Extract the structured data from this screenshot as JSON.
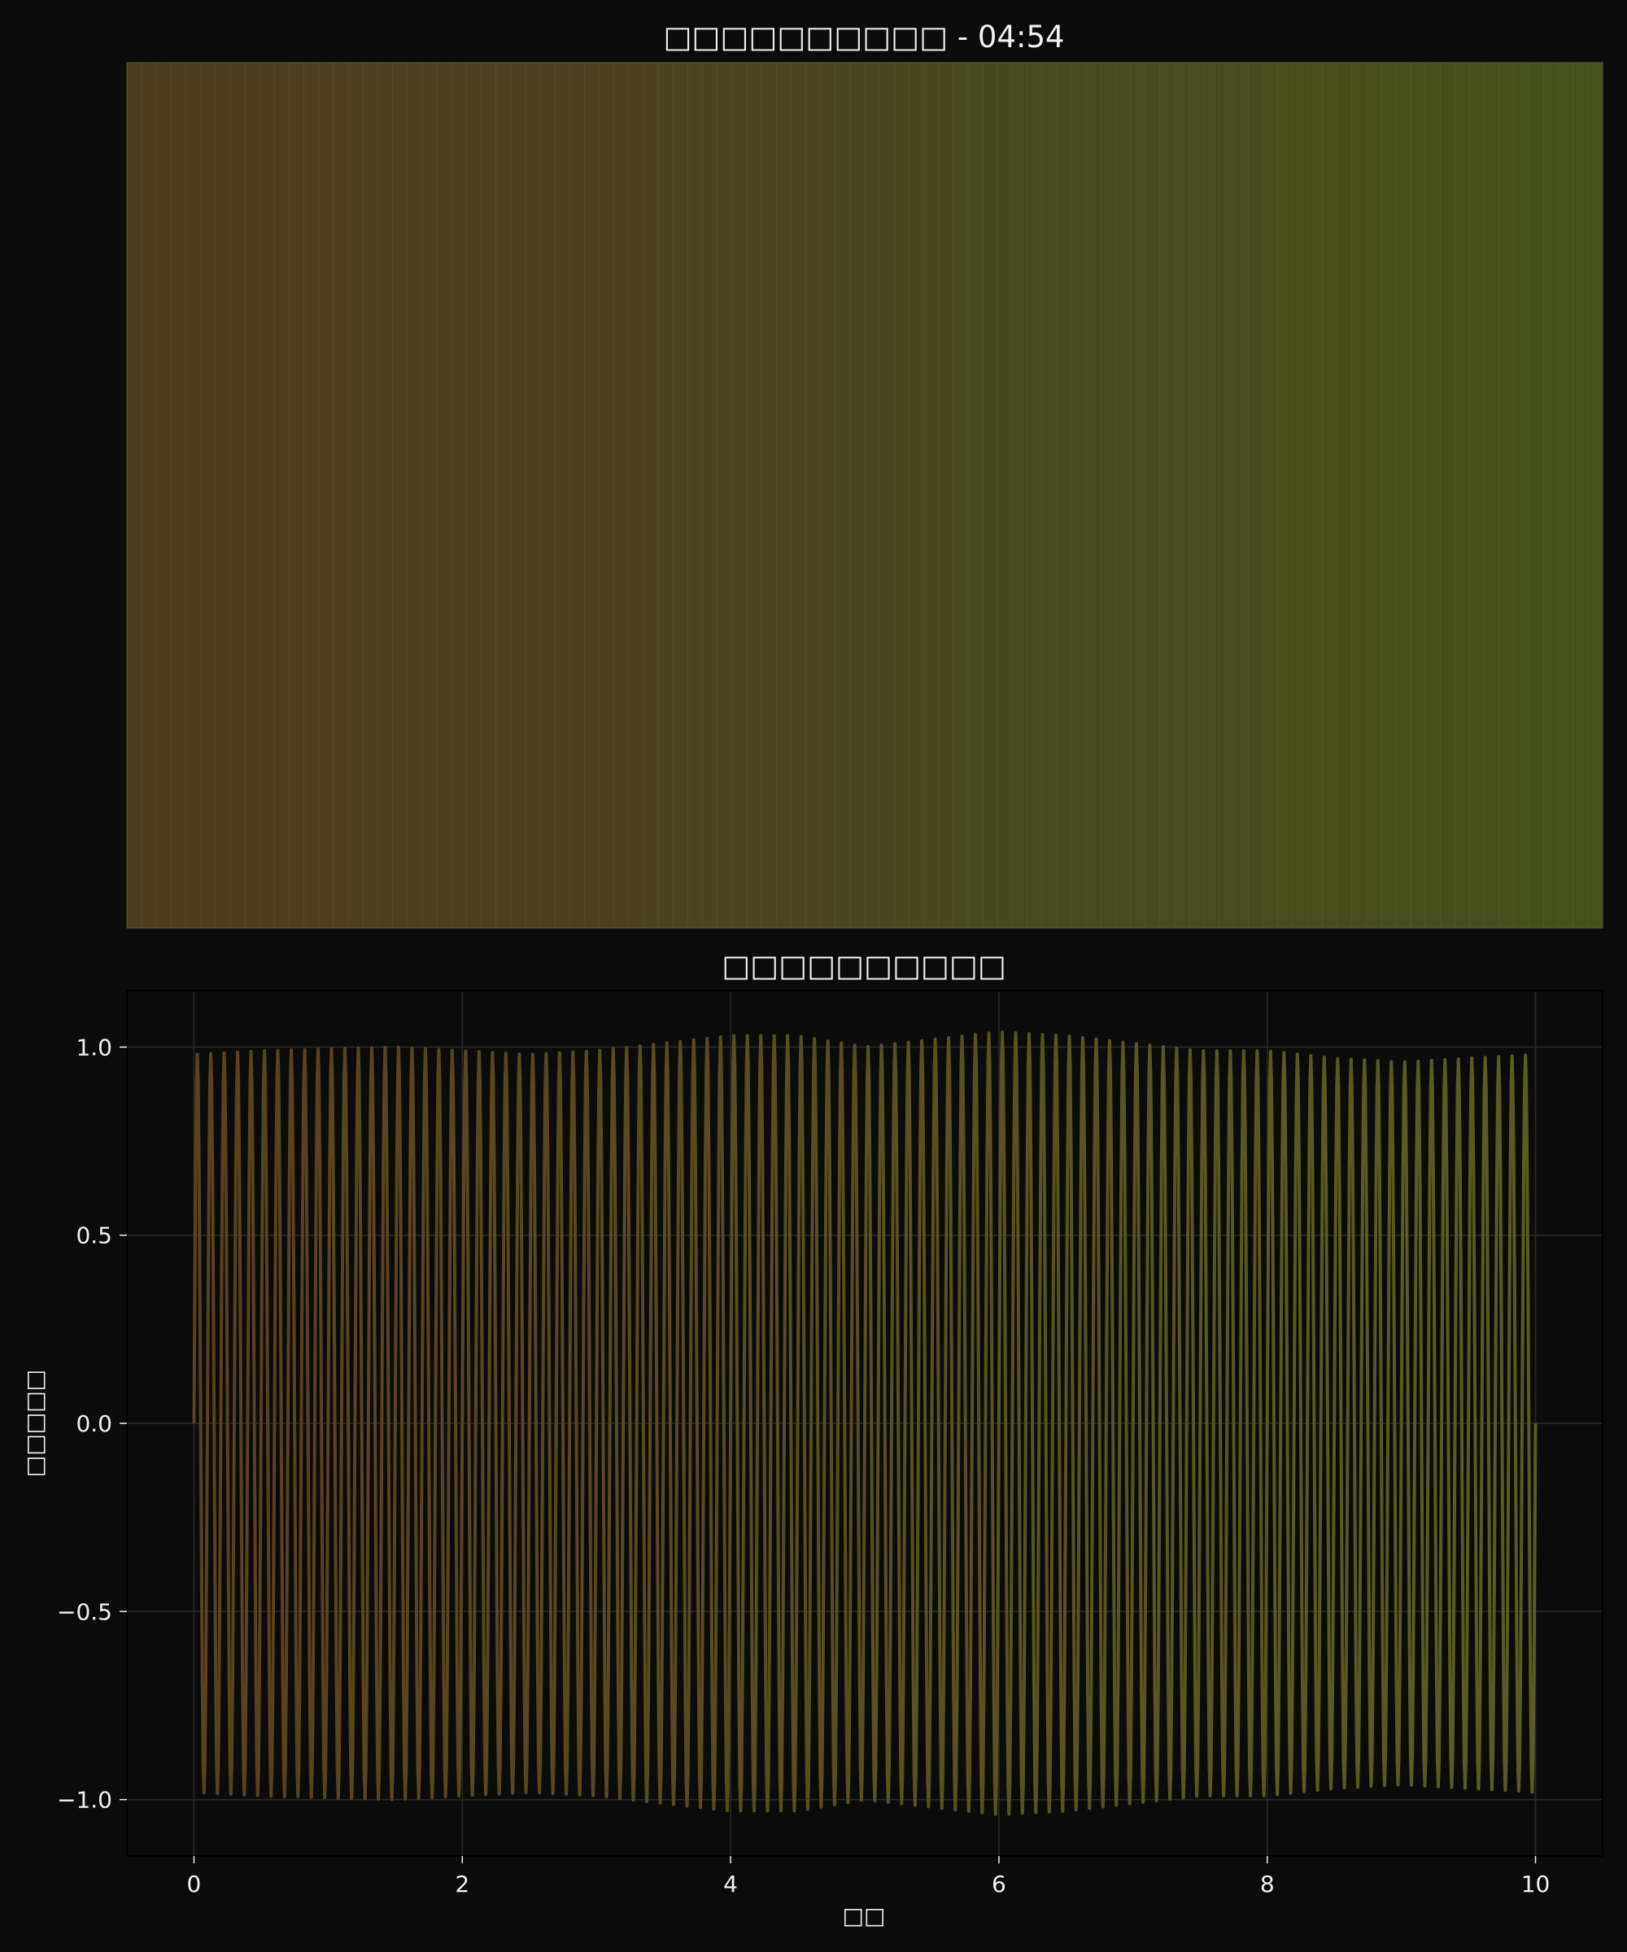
{
  "figure": {
    "background": "#0b0b0b",
    "text_color": "#f2f2f2"
  },
  "chart_data": [
    {
      "type": "heatmap",
      "title": "□□□□□□□□□□ - 04:54",
      "color_start": "#4e3a1c",
      "color_end": "#46521c",
      "stripe_count": 200,
      "axes_visible": false
    },
    {
      "type": "line",
      "title": "□□□□□□□□□□",
      "xlabel": "□□",
      "ylabel": "□□□□□",
      "xlim": [
        -0.5,
        10.5
      ],
      "ylim": [
        -1.15,
        1.15
      ],
      "x_ticks": [
        0,
        2,
        4,
        6,
        8,
        10
      ],
      "x_tick_labels": [
        "0",
        "2",
        "4",
        "6",
        "8",
        "10"
      ],
      "y_ticks": [
        -1.0,
        -0.5,
        0.0,
        0.5,
        1.0
      ],
      "y_tick_labels": [
        "−1.0",
        "−0.5",
        "0.0",
        "0.5",
        "1.0"
      ],
      "grid": true,
      "series": [
        {
          "color_start": "#5e4420",
          "color_end": "#5e6222",
          "x_start": 0,
          "x_end": 10,
          "cycles": 100,
          "amplitude_points": [
            [
              0,
              0.98
            ],
            [
              0.5,
              0.99
            ],
            [
              1.0,
              0.995
            ],
            [
              1.5,
              1.0
            ],
            [
              2.0,
              0.99
            ],
            [
              2.5,
              0.98
            ],
            [
              3.0,
              0.99
            ],
            [
              3.5,
              1.01
            ],
            [
              4.0,
              1.03
            ],
            [
              4.5,
              1.03
            ],
            [
              5.0,
              1.0
            ],
            [
              5.5,
              1.02
            ],
            [
              6.0,
              1.04
            ],
            [
              6.5,
              1.03
            ],
            [
              7.0,
              1.01
            ],
            [
              7.5,
              0.99
            ],
            [
              8.0,
              0.99
            ],
            [
              8.5,
              0.97
            ],
            [
              9.0,
              0.96
            ],
            [
              9.5,
              0.97
            ],
            [
              10.0,
              0.98
            ]
          ]
        }
      ]
    }
  ]
}
